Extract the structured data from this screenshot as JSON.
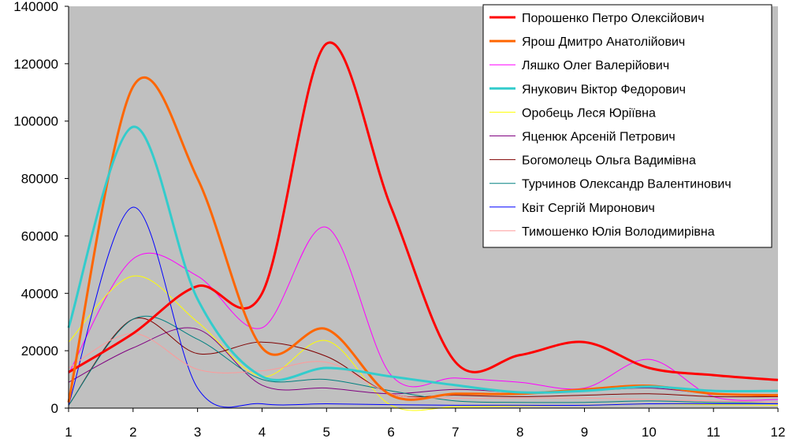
{
  "chart_data": {
    "type": "line",
    "title": "",
    "xlabel": "",
    "ylabel": "",
    "x": [
      1,
      2,
      3,
      4,
      5,
      6,
      7,
      8,
      9,
      10,
      11,
      12
    ],
    "xlim": [
      1,
      12
    ],
    "ylim": [
      0,
      140000
    ],
    "y_ticks": [
      "0",
      "20000",
      "40000",
      "60000",
      "80000",
      "100000",
      "120000",
      "140000"
    ],
    "x_ticks": [
      "1",
      "2",
      "3",
      "4",
      "5",
      "6",
      "7",
      "8",
      "9",
      "10",
      "11",
      "12"
    ],
    "plot_background": "#c0c0c0",
    "grid": false,
    "legend_position": "top-right",
    "series": [
      {
        "name": "Порошенко Петро Олексійович",
        "color": "#ff0000",
        "width": 3,
        "values": [
          12500,
          26000,
          42500,
          40000,
          127000,
          70000,
          16000,
          18500,
          23000,
          14000,
          11500,
          9800
        ]
      },
      {
        "name": "Ярош Дмитро Анатолійович",
        "color": "#ff6600",
        "width": 3,
        "values": [
          2000,
          112000,
          80000,
          21000,
          27500,
          4500,
          5000,
          5000,
          6500,
          7800,
          5000,
          4500
        ]
      },
      {
        "name": "Ляшко Олег Валерійович",
        "color": "#ff00ff",
        "width": 1,
        "values": [
          12000,
          52000,
          46000,
          28000,
          63000,
          11500,
          10500,
          9000,
          7000,
          17000,
          4000,
          3000
        ]
      },
      {
        "name": "Янукович Віктор Федорович",
        "color": "#33cccc",
        "width": 3,
        "values": [
          28000,
          98000,
          38000,
          11000,
          14000,
          11000,
          8000,
          5500,
          6000,
          7500,
          6000,
          6000
        ]
      },
      {
        "name": "Оробець Леся Юріївна",
        "color": "#ffff00",
        "width": 1,
        "values": [
          23000,
          46000,
          30000,
          11000,
          23500,
          1000,
          500,
          800,
          1000,
          1500,
          1200,
          1000
        ]
      },
      {
        "name": "Яценюк Арсеній Петрович",
        "color": "#800080",
        "width": 1,
        "values": [
          9000,
          21000,
          27500,
          8000,
          7000,
          5000,
          6500,
          5500,
          6000,
          7000,
          5000,
          4000
        ]
      },
      {
        "name": "Богомолець Ольга Вадимівна",
        "color": "#800000",
        "width": 1,
        "values": [
          1000,
          31000,
          19000,
          23000,
          18000,
          5000,
          4500,
          4000,
          4500,
          5000,
          4000,
          4000
        ]
      },
      {
        "name": "Турчинов Олександр Валентинович",
        "color": "#008080",
        "width": 1,
        "values": [
          1000,
          31000,
          24000,
          10000,
          10000,
          6000,
          2500,
          2000,
          2000,
          2500,
          2000,
          2000
        ]
      },
      {
        "name": "Квіт Сергій Миронович",
        "color": "#0000ff",
        "width": 1,
        "values": [
          1000,
          70000,
          7000,
          1500,
          1500,
          1200,
          1000,
          1000,
          1000,
          1500,
          1500,
          1500
        ]
      },
      {
        "name": "Тимошенко Юлія Володимирівна",
        "color": "#ff9999",
        "width": 1,
        "values": [
          14000,
          26000,
          13500,
          13000,
          16000,
          5000,
          3500,
          3500,
          3500,
          3000,
          2500,
          2000
        ]
      }
    ]
  }
}
